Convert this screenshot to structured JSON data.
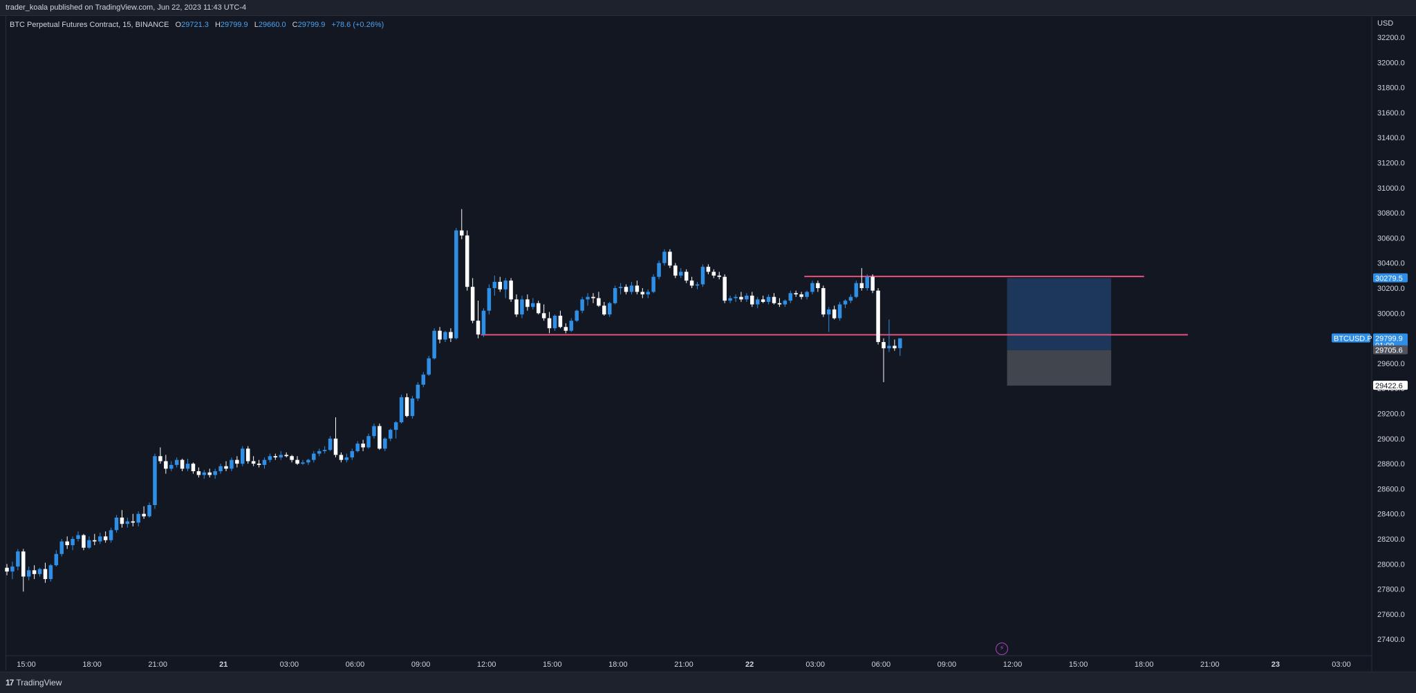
{
  "header": {
    "published": "trader_koala published on TradingView.com, Jun 22, 2023 11:43 UTC-4"
  },
  "legend": {
    "symbol": "BTC Perpetual Futures Contract, 15, BINANCE",
    "o_label": "O",
    "o": "29721.3",
    "h_label": "H",
    "h": "29799.9",
    "l_label": "L",
    "l": "29660.0",
    "c_label": "C",
    "c": "29799.9",
    "change": "+78.6 (+0.26%)"
  },
  "footer": {
    "brand": "TradingView",
    "logo": "17"
  },
  "colors": {
    "background": "#131722",
    "up": "#2f8fe6",
    "down": "#ffffff",
    "hline": "#e8527a",
    "target_zone": "#1f3d63",
    "stop_zone": "#4a4d56",
    "price_tag": "#2f8fe6"
  },
  "icons": {
    "alert": "lightning-icon"
  },
  "chart_data": {
    "type": "candlestick",
    "currency_label": "USD",
    "y_ticks": [
      "32200.0",
      "32000.0",
      "31800.0",
      "31600.0",
      "31400.0",
      "31200.0",
      "31000.0",
      "30800.0",
      "30600.0",
      "30400.0",
      "30200.0",
      "30000.0",
      "29800.0",
      "29600.0",
      "29400.0",
      "29200.0",
      "29000.0",
      "28800.0",
      "28600.0",
      "28400.0",
      "28200.0",
      "28000.0",
      "27800.0",
      "27600.0",
      "27400.0"
    ],
    "x_ticks": [
      "15:00",
      "18:00",
      "21:00",
      "21",
      "03:00",
      "06:00",
      "09:00",
      "12:00",
      "15:00",
      "18:00",
      "21:00",
      "22",
      "03:00",
      "06:00",
      "09:00",
      "12:00",
      "15:00",
      "18:00",
      "21:00",
      "23",
      "03:00"
    ],
    "bold_x_ticks": [
      "21",
      "22",
      "23"
    ],
    "price_tags": [
      {
        "label": "30279.5",
        "price": 30279.5,
        "style": "blue"
      },
      {
        "label": "29799.9",
        "price": 29799.9,
        "style": "blue",
        "sub": "01:09",
        "symbol": "BTCUSD.P"
      },
      {
        "label": "29705.6",
        "price": 29705.6,
        "style": "grey"
      },
      {
        "label": "29422.6",
        "price": 29422.6,
        "style": "white"
      }
    ],
    "horizontal_lines": [
      {
        "price": 30293,
        "from": "2023-06-22 02:30",
        "to": "2023-06-22 18:00"
      },
      {
        "price": 29828,
        "from": "2023-06-21 11:45",
        "to": "2023-06-22 20:00"
      }
    ],
    "position_zones": [
      {
        "kind": "target",
        "top": 30279.5,
        "bottom": 29705.6,
        "from": "2023-06-22 11:45",
        "to": "2023-06-22 16:30"
      },
      {
        "kind": "stop",
        "top": 29705.6,
        "bottom": 29422.6,
        "from": "2023-06-22 11:45",
        "to": "2023-06-22 16:30"
      }
    ],
    "candles": [
      [
        27970,
        28000,
        27910,
        27940
      ],
      [
        27940,
        28020,
        27880,
        27980
      ],
      [
        27980,
        28120,
        27950,
        28100
      ],
      [
        28100,
        28120,
        27780,
        27900
      ],
      [
        27900,
        27980,
        27870,
        27950
      ],
      [
        27950,
        27990,
        27880,
        27920
      ],
      [
        27920,
        27970,
        27900,
        27960
      ],
      [
        27960,
        28010,
        27850,
        27880
      ],
      [
        27880,
        28000,
        27860,
        27990
      ],
      [
        27990,
        28110,
        27980,
        28080
      ],
      [
        28080,
        28200,
        28060,
        28180
      ],
      [
        28180,
        28220,
        28120,
        28150
      ],
      [
        28150,
        28220,
        28110,
        28200
      ],
      [
        28200,
        28260,
        28180,
        28230
      ],
      [
        28230,
        28240,
        28110,
        28130
      ],
      [
        28130,
        28220,
        28120,
        28190
      ],
      [
        28190,
        28240,
        28150,
        28180
      ],
      [
        28180,
        28250,
        28160,
        28220
      ],
      [
        28220,
        28260,
        28170,
        28190
      ],
      [
        28190,
        28290,
        28170,
        28270
      ],
      [
        28270,
        28390,
        28250,
        28370
      ],
      [
        28370,
        28430,
        28290,
        28320
      ],
      [
        28320,
        28370,
        28290,
        28340
      ],
      [
        28340,
        28400,
        28300,
        28330
      ],
      [
        28330,
        28420,
        28300,
        28400
      ],
      [
        28400,
        28460,
        28360,
        28380
      ],
      [
        28380,
        28490,
        28370,
        28470
      ],
      [
        28470,
        28880,
        28440,
        28860
      ],
      [
        28860,
        28930,
        28800,
        28820
      ],
      [
        28820,
        28870,
        28720,
        28760
      ],
      [
        28760,
        28820,
        28740,
        28790
      ],
      [
        28790,
        28850,
        28770,
        28830
      ],
      [
        28830,
        28840,
        28740,
        28760
      ],
      [
        28760,
        28840,
        28740,
        28800
      ],
      [
        28800,
        28810,
        28720,
        28740
      ],
      [
        28740,
        28770,
        28690,
        28710
      ],
      [
        28710,
        28750,
        28680,
        28730
      ],
      [
        28730,
        28760,
        28690,
        28710
      ],
      [
        28710,
        28760,
        28680,
        28740
      ],
      [
        28740,
        28800,
        28720,
        28780
      ],
      [
        28780,
        28820,
        28740,
        28760
      ],
      [
        28760,
        28850,
        28740,
        28830
      ],
      [
        28830,
        28860,
        28770,
        28800
      ],
      [
        28800,
        28940,
        28780,
        28920
      ],
      [
        28920,
        28940,
        28800,
        28820
      ],
      [
        28820,
        28860,
        28780,
        28800
      ],
      [
        28800,
        28830,
        28770,
        28790
      ],
      [
        28790,
        28850,
        28760,
        28830
      ],
      [
        28830,
        28880,
        28810,
        28860
      ],
      [
        28860,
        28880,
        28830,
        28850
      ],
      [
        28850,
        28900,
        28830,
        28870
      ],
      [
        28870,
        28890,
        28850,
        28860
      ],
      [
        28860,
        28870,
        28810,
        28830
      ],
      [
        28830,
        28860,
        28790,
        28800
      ],
      [
        28800,
        28830,
        28790,
        28810
      ],
      [
        28810,
        28840,
        28790,
        28830
      ],
      [
        28830,
        28900,
        28810,
        28880
      ],
      [
        28880,
        28920,
        28860,
        28900
      ],
      [
        28900,
        28940,
        28880,
        28910
      ],
      [
        28910,
        29020,
        28900,
        29000
      ],
      [
        29000,
        29170,
        28850,
        28870
      ],
      [
        28870,
        28890,
        28810,
        28830
      ],
      [
        28830,
        28880,
        28810,
        28850
      ],
      [
        28850,
        28920,
        28830,
        28900
      ],
      [
        28900,
        28980,
        28890,
        28960
      ],
      [
        28960,
        28990,
        28900,
        28930
      ],
      [
        28930,
        29040,
        28920,
        29020
      ],
      [
        29020,
        29120,
        29000,
        29100
      ],
      [
        29100,
        29120,
        28910,
        28920
      ],
      [
        28920,
        29010,
        28900,
        29000
      ],
      [
        29000,
        29080,
        28980,
        29070
      ],
      [
        29070,
        29140,
        29000,
        29130
      ],
      [
        29130,
        29350,
        29120,
        29330
      ],
      [
        29330,
        29360,
        29170,
        29180
      ],
      [
        29180,
        29340,
        29160,
        29320
      ],
      [
        29320,
        29450,
        29300,
        29430
      ],
      [
        29430,
        29530,
        29410,
        29510
      ],
      [
        29510,
        29660,
        29500,
        29640
      ],
      [
        29640,
        29880,
        29630,
        29860
      ],
      [
        29860,
        29890,
        29760,
        29790
      ],
      [
        29790,
        29860,
        29770,
        29850
      ],
      [
        29850,
        29880,
        29770,
        29800
      ],
      [
        29800,
        30680,
        29790,
        30660
      ],
      [
        30660,
        30830,
        30590,
        30620
      ],
      [
        30620,
        30660,
        30180,
        30210
      ],
      [
        30210,
        30280,
        29920,
        29940
      ],
      [
        29940,
        30100,
        29800,
        29830
      ],
      [
        29830,
        30040,
        29810,
        30020
      ],
      [
        30020,
        30230,
        29990,
        30200
      ],
      [
        30200,
        30300,
        30140,
        30250
      ],
      [
        30250,
        30290,
        30170,
        30190
      ],
      [
        30190,
        30280,
        30120,
        30260
      ],
      [
        30260,
        30280,
        30090,
        30110
      ],
      [
        30110,
        30150,
        29970,
        29990
      ],
      [
        29990,
        30140,
        29960,
        30110
      ],
      [
        30110,
        30150,
        30020,
        30050
      ],
      [
        30050,
        30120,
        30030,
        30080
      ],
      [
        30080,
        30100,
        29990,
        30000
      ],
      [
        30000,
        30070,
        29940,
        29960
      ],
      [
        29960,
        30010,
        29840,
        29880
      ],
      [
        29880,
        29990,
        29860,
        29980
      ],
      [
        29980,
        30020,
        29880,
        29890
      ],
      [
        29890,
        29920,
        29840,
        29860
      ],
      [
        29860,
        29960,
        29850,
        29940
      ],
      [
        29940,
        30030,
        29930,
        30020
      ],
      [
        30020,
        30130,
        30000,
        30110
      ],
      [
        30110,
        30160,
        30060,
        30130
      ],
      [
        30130,
        30160,
        30080,
        30120
      ],
      [
        30120,
        30170,
        30050,
        30060
      ],
      [
        30060,
        30090,
        29980,
        29990
      ],
      [
        29990,
        30090,
        29970,
        30080
      ],
      [
        30080,
        30220,
        30070,
        30200
      ],
      [
        30200,
        30240,
        30150,
        30210
      ],
      [
        30210,
        30230,
        30150,
        30170
      ],
      [
        30170,
        30250,
        30150,
        30220
      ],
      [
        30220,
        30260,
        30150,
        30170
      ],
      [
        30170,
        30200,
        30120,
        30150
      ],
      [
        30150,
        30190,
        30120,
        30170
      ],
      [
        30170,
        30310,
        30160,
        30290
      ],
      [
        30290,
        30420,
        30270,
        30400
      ],
      [
        30400,
        30510,
        30380,
        30490
      ],
      [
        30490,
        30510,
        30360,
        30380
      ],
      [
        30380,
        30400,
        30280,
        30300
      ],
      [
        30300,
        30360,
        30280,
        30330
      ],
      [
        30330,
        30350,
        30240,
        30260
      ],
      [
        30260,
        30290,
        30200,
        30220
      ],
      [
        30220,
        30250,
        30190,
        30230
      ],
      [
        30230,
        30390,
        30210,
        30370
      ],
      [
        30370,
        30390,
        30310,
        30330
      ],
      [
        30330,
        30350,
        30280,
        30300
      ],
      [
        30300,
        30330,
        30270,
        30290
      ],
      [
        30290,
        30310,
        30080,
        30100
      ],
      [
        30100,
        30140,
        30080,
        30120
      ],
      [
        30120,
        30150,
        30090,
        30130
      ],
      [
        30130,
        30170,
        30090,
        30110
      ],
      [
        30110,
        30160,
        30090,
        30140
      ],
      [
        30140,
        30170,
        30050,
        30070
      ],
      [
        30070,
        30130,
        30040,
        30110
      ],
      [
        30110,
        30140,
        30080,
        30090
      ],
      [
        30090,
        30150,
        30070,
        30130
      ],
      [
        30130,
        30160,
        30070,
        30080
      ],
      [
        30080,
        30120,
        30050,
        30070
      ],
      [
        30070,
        30110,
        30050,
        30100
      ],
      [
        30100,
        30180,
        30080,
        30160
      ],
      [
        30160,
        30180,
        30130,
        30150
      ],
      [
        30150,
        30170,
        30110,
        30130
      ],
      [
        30130,
        30180,
        30110,
        30170
      ],
      [
        30170,
        30260,
        30150,
        30240
      ],
      [
        30240,
        30260,
        30170,
        30200
      ],
      [
        30200,
        30220,
        29970,
        29990
      ],
      [
        29990,
        30050,
        29850,
        30030
      ],
      [
        30030,
        30060,
        29950,
        29960
      ],
      [
        29960,
        30090,
        29940,
        30070
      ],
      [
        30070,
        30110,
        30040,
        30100
      ],
      [
        30100,
        30150,
        30080,
        30130
      ],
      [
        30130,
        30260,
        30120,
        30240
      ],
      [
        30240,
        30360,
        30180,
        30200
      ],
      [
        30200,
        30310,
        30180,
        30290
      ],
      [
        30290,
        30310,
        30160,
        30180
      ],
      [
        30180,
        30200,
        29750,
        29770
      ],
      [
        29770,
        29800,
        29450,
        29720
      ],
      [
        29720,
        29950,
        29690,
        29740
      ],
      [
        29740,
        29790,
        29700,
        29720
      ],
      [
        29721.3,
        29799.9,
        29660,
        29799.9
      ]
    ]
  }
}
